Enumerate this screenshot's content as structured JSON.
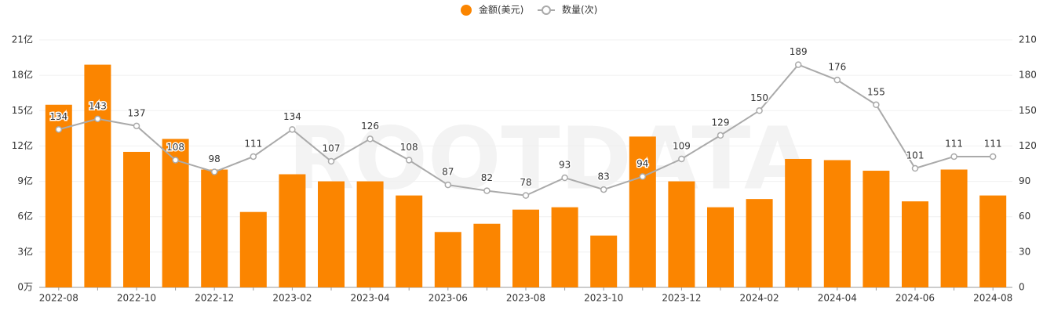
{
  "chart_data": {
    "type": "bar",
    "watermark": "ROOTDATA",
    "categories": [
      "2022-08",
      null,
      "2022-10",
      null,
      "2022-12",
      null,
      "2023-02",
      null,
      "2023-04",
      null,
      "2023-06",
      null,
      "2023-08",
      null,
      "2023-10",
      null,
      "2023-12",
      null,
      "2024-02",
      null,
      "2024-04",
      null,
      "2024-06",
      null,
      "2024-08"
    ],
    "series": [
      {
        "name": "金额(美元)",
        "type": "bar",
        "color": "#fb8500",
        "values": [
          15.5,
          18.9,
          11.5,
          12.6,
          10.0,
          6.4,
          9.6,
          9.0,
          9.0,
          7.8,
          4.7,
          5.4,
          6.6,
          6.8,
          4.4,
          12.8,
          9.0,
          6.8,
          7.5,
          10.9,
          10.8,
          9.9,
          7.3,
          10.0,
          7.8
        ]
      },
      {
        "name": "数量(次)",
        "type": "line",
        "axis": "y2",
        "color": "#aaaaaa",
        "values": [
          134,
          143,
          137,
          108,
          98,
          111,
          134,
          107,
          126,
          108,
          87,
          82,
          78,
          93,
          83,
          94,
          109,
          129,
          150,
          189,
          176,
          155,
          101,
          111,
          111
        ]
      }
    ],
    "ylim": [
      0,
      21
    ],
    "yticks": [
      {
        "value": 0,
        "label": "0万"
      },
      {
        "value": 3,
        "label": "3亿"
      },
      {
        "value": 6,
        "label": "6亿"
      },
      {
        "value": 9,
        "label": "9亿"
      },
      {
        "value": 12,
        "label": "12亿"
      },
      {
        "value": 15,
        "label": "15亿"
      },
      {
        "value": 18,
        "label": "18亿"
      },
      {
        "value": 21,
        "label": "21亿"
      }
    ],
    "y2lim": [
      0,
      210
    ],
    "y2ticks": [
      0,
      30,
      60,
      90,
      120,
      150,
      180,
      210
    ],
    "grid": true
  }
}
